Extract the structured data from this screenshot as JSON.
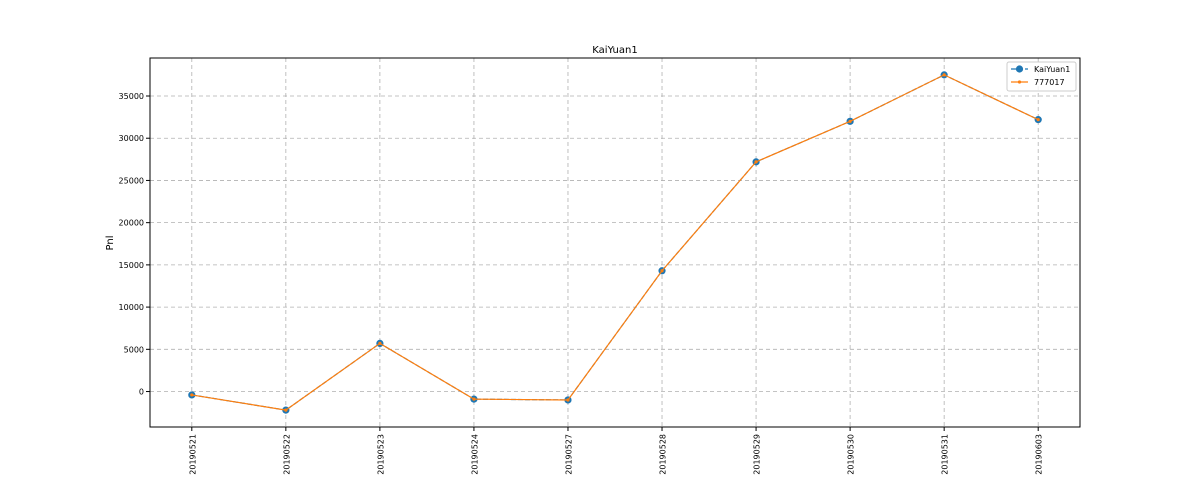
{
  "chart_data": {
    "type": "line",
    "title": "KaiYuan1",
    "xlabel": "",
    "ylabel": "Pnl",
    "categories": [
      "20190521",
      "20190522",
      "20190523",
      "20190524",
      "20190527",
      "20190528",
      "20190529",
      "20190530",
      "20190531",
      "20190603"
    ],
    "series": [
      {
        "name": "KaiYuan1",
        "values": [
          -400,
          -2200,
          5700,
          -900,
          -1000,
          14300,
          27200,
          32000,
          37500,
          32200
        ],
        "color": "#1f77b4",
        "marker": "circle",
        "linestyle": "dashed"
      },
      {
        "name": "777017",
        "values": [
          -400,
          -2200,
          5700,
          -900,
          -1000,
          14300,
          27200,
          32000,
          37500,
          32200
        ],
        "color": "#ff7f0e",
        "marker": "dot",
        "linestyle": "solid"
      }
    ],
    "ylim": [
      -4200,
      39500
    ],
    "yticks": [
      0,
      5000,
      10000,
      15000,
      20000,
      25000,
      30000,
      35000
    ],
    "grid": true,
    "legend_position": "top-right"
  }
}
